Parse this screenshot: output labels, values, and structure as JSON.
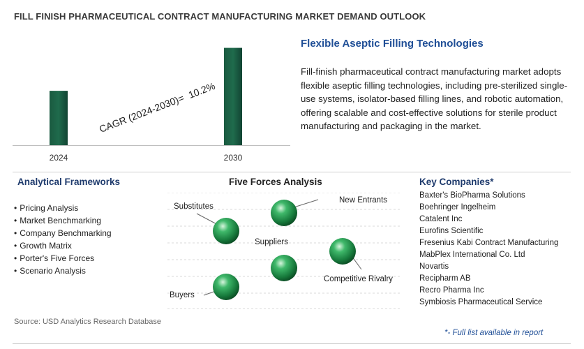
{
  "page_title": "FILL FINISH PHARMACEUTICAL CONTRACT MANUFACTURING MARKET DEMAND OUTLOOK",
  "colors": {
    "bar": "#1c5c44",
    "heading_blue": "#1f4e96",
    "heading_dark_blue": "#1f3b6d",
    "sphere": "#2e9e5a"
  },
  "chart_data": {
    "type": "bar",
    "categories": [
      "2024",
      "2030"
    ],
    "values": [
      1.0,
      1.79
    ],
    "ylim": [
      0,
      1.9
    ],
    "annotation": {
      "label": "CAGR (2024-2030)=",
      "value": "10.2%"
    },
    "grid": false,
    "legend": "none"
  },
  "description": {
    "title": "Flexible Aseptic Filling Technologies",
    "text": "Fill-finish pharmaceutical contract manufacturing market adopts flexible aseptic filling technologies, including pre-sterilized single-use systems, isolator-based filling lines, and robotic automation, offering scalable and cost-effective solutions for sterile product manufacturing and packaging in the market."
  },
  "frameworks": {
    "title": "Analytical Frameworks",
    "items": [
      "Pricing Analysis",
      "Market Benchmarking",
      "Company Benchmarking",
      "Growth Matrix",
      "Porter's Five Forces",
      "Scenario Analysis"
    ]
  },
  "five_forces": {
    "title": "Five Forces Analysis",
    "labels": {
      "substitutes": "Substitutes",
      "new_entrants": "New Entrants",
      "suppliers": "Suppliers",
      "competitive_rivalry": "Competitive Rivalry",
      "buyers": "Buyers"
    }
  },
  "companies": {
    "title": "Key Companies*",
    "items": [
      "Baxter's BioPharma Solutions",
      "Boehringer Ingelheim",
      "Catalent Inc",
      "Eurofins Scientific",
      "Fresenius Kabi Contract Manufacturing",
      "MabPlex International Co. Ltd",
      "Novartis",
      "Recipharm AB",
      "Recro Pharma Inc",
      "Symbiosis Pharmaceutical Service"
    ]
  },
  "source": "Source: USD Analytics Research Database",
  "footnote": "*- Full list available in report"
}
